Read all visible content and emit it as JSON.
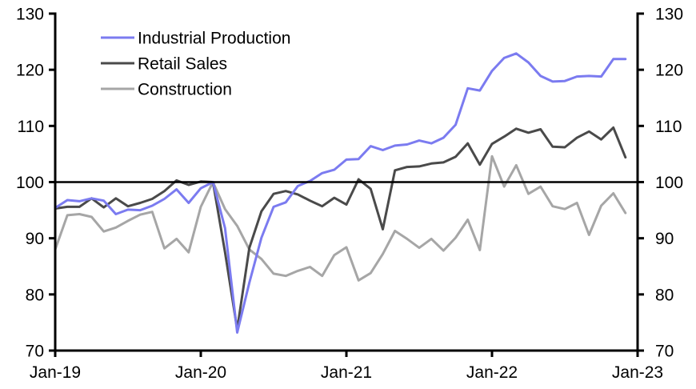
{
  "chart_data": {
    "type": "line",
    "title": "",
    "xlabel": "",
    "ylabel": "",
    "ylabel_right": "",
    "ylim": [
      70,
      130
    ],
    "yticks": [
      70,
      80,
      90,
      100,
      110,
      120,
      130
    ],
    "ytick_labels": [
      "70",
      "80",
      "90",
      "100",
      "110",
      "120",
      "130"
    ],
    "xlim": [
      "Jan-19",
      "Jan-23"
    ],
    "xtick_labels": [
      "Jan-19",
      "Jan-20",
      "Jan-21",
      "Jan-22",
      "Jan-23"
    ],
    "reference_line": 100,
    "grid": false,
    "legend_position": "top-left",
    "x": [
      "Jan-19",
      "Feb-19",
      "Mar-19",
      "Apr-19",
      "May-19",
      "Jun-19",
      "Jul-19",
      "Aug-19",
      "Sep-19",
      "Oct-19",
      "Nov-19",
      "Dec-19",
      "Jan-20",
      "Feb-20",
      "Mar-20",
      "Apr-20",
      "May-20",
      "Jun-20",
      "Jul-20",
      "Aug-20",
      "Sep-20",
      "Oct-20",
      "Nov-20",
      "Dec-20",
      "Jan-21",
      "Feb-21",
      "Mar-21",
      "Apr-21",
      "May-21",
      "Jun-21",
      "Jul-21",
      "Aug-21",
      "Sep-21",
      "Oct-21",
      "Nov-21",
      "Dec-21",
      "Jan-22",
      "Feb-22",
      "Mar-22",
      "Apr-22",
      "May-22",
      "Jun-22",
      "Jul-22",
      "Aug-22",
      "Sep-22",
      "Oct-22",
      "Nov-22",
      "Dec-22"
    ],
    "series": [
      {
        "name": "Industrial Production",
        "color": "#7b7bf0",
        "values": [
          95.4,
          96.8,
          96.6,
          97.1,
          96.7,
          94.3,
          95.1,
          95.0,
          95.8,
          97.0,
          98.7,
          96.3,
          98.9,
          100.0,
          91.8,
          73.2,
          82.1,
          90.1,
          95.6,
          96.4,
          99.3,
          100.2,
          101.6,
          102.2,
          104.0,
          104.1,
          106.4,
          105.7,
          106.5,
          106.7,
          107.4,
          106.9,
          107.9,
          110.2,
          116.7,
          116.3,
          119.8,
          122.1,
          122.9,
          121.3,
          118.9,
          117.9,
          118.0,
          118.8,
          118.9,
          118.8,
          121.9,
          121.9
        ]
      },
      {
        "name": "Retail Sales",
        "color": "#4a4a4a",
        "values": [
          95.3,
          95.6,
          95.6,
          97.1,
          95.5,
          97.1,
          95.7,
          96.3,
          97.0,
          98.4,
          100.3,
          99.5,
          100.1,
          100.0,
          87.5,
          73.8,
          88.3,
          94.8,
          97.9,
          98.4,
          97.8,
          96.7,
          95.7,
          97.2,
          96.0,
          100.5,
          98.8,
          91.6,
          102.1,
          102.7,
          102.8,
          103.3,
          103.5,
          104.5,
          106.9,
          103.1,
          106.8,
          108.1,
          109.5,
          108.8,
          109.4,
          106.3,
          106.2,
          107.9,
          109.0,
          107.6,
          109.7,
          104.4
        ]
      },
      {
        "name": "Construction",
        "color": "#a6a6a6",
        "values": [
          88.0,
          94.1,
          94.3,
          93.8,
          91.2,
          91.9,
          93.1,
          94.2,
          94.7,
          88.2,
          89.9,
          87.5,
          95.6,
          100.0,
          95.2,
          92.2,
          88.0,
          86.3,
          83.7,
          83.3,
          84.2,
          84.9,
          83.3,
          87.0,
          88.4,
          82.5,
          83.8,
          87.2,
          91.3,
          89.9,
          88.3,
          89.9,
          87.8,
          90.1,
          93.3,
          87.9,
          104.6,
          99.2,
          103.0,
          97.9,
          99.2,
          95.7,
          95.2,
          96.3,
          90.6,
          95.8,
          98.0,
          94.5
        ]
      }
    ]
  }
}
